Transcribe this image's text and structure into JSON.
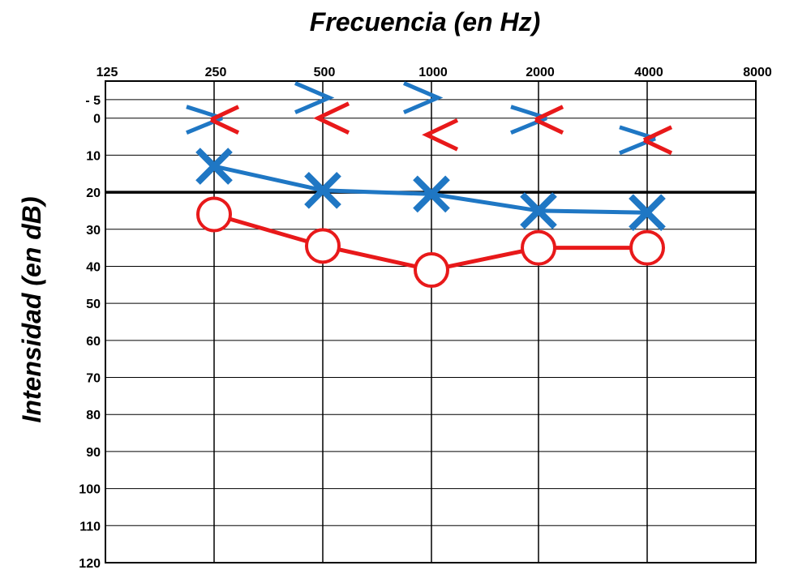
{
  "chart_data": {
    "type": "line",
    "title": "Frecuencia (en Hz)",
    "ylabel": "Intensidad (en dB)",
    "x_ticks": [
      "125",
      "250",
      "500",
      "1000",
      "2000",
      "4000",
      "8000"
    ],
    "y_ticks": [
      "- 5",
      "0",
      "10",
      "20",
      "30",
      "40",
      "50",
      "60",
      "70",
      "80",
      "90",
      "100",
      "110",
      "120"
    ],
    "ylim": [
      -10,
      120
    ],
    "y_inverted": true,
    "reference_line": 20,
    "grid": true,
    "colors": {
      "blue": "#1f77c4",
      "red": "#e8191a"
    },
    "series": [
      {
        "marker": "x",
        "color": "blue",
        "line": true,
        "x": [
          250,
          500,
          1000,
          2000,
          4000
        ],
        "values": [
          13,
          19.5,
          20.5,
          25,
          25.5
        ]
      },
      {
        "marker": "o",
        "color": "red",
        "line": true,
        "x": [
          250,
          500,
          1000,
          2000,
          4000
        ],
        "values": [
          26,
          34.5,
          41,
          35,
          35
        ]
      },
      {
        "marker": "bone-x",
        "color": "blue",
        "line": false,
        "x": [
          250,
          2000,
          4000
        ],
        "values": [
          0,
          0,
          5.5
        ]
      },
      {
        "marker": "bone-x",
        "color": "red",
        "line": false,
        "x": [
          250,
          2000,
          4000
        ],
        "values": [
          0,
          0,
          5.5
        ]
      },
      {
        "marker": ">",
        "color": "blue",
        "line": false,
        "x": [
          500,
          1000
        ],
        "values": [
          -5.5,
          -5.5
        ]
      },
      {
        "marker": "<",
        "color": "red",
        "line": false,
        "x": [
          500,
          1000
        ],
        "values": [
          0,
          4.5
        ]
      }
    ]
  }
}
